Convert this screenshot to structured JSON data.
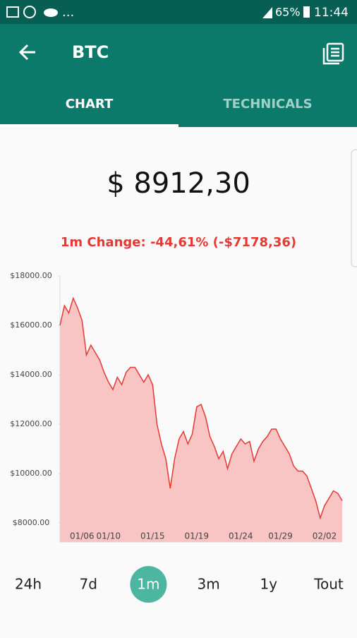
{
  "status_bar": {
    "more": "...",
    "battery": "65%",
    "time": "11:44"
  },
  "app_bar": {
    "title": "BTC"
  },
  "tabs": [
    {
      "label": "CHART",
      "selected": true
    },
    {
      "label": "TECHNICALS",
      "selected": false
    }
  ],
  "price": "$ 8912,30",
  "change": "1m Change: -44,61% (-$7178,36)",
  "chart_data": {
    "type": "area",
    "color": "#e53935",
    "fill": "#f8c4c4",
    "grid": false,
    "categories": [
      null,
      null,
      null,
      null,
      null,
      "01/06",
      null,
      null,
      null,
      null,
      null,
      "01/10",
      null,
      null,
      null,
      null,
      null,
      null,
      null,
      null,
      null,
      "01/15",
      null,
      null,
      null,
      null,
      null,
      null,
      null,
      null,
      null,
      "01/19",
      null,
      null,
      null,
      null,
      null,
      null,
      null,
      null,
      null,
      "01/24",
      null,
      null,
      null,
      null,
      null,
      null,
      null,
      null,
      "01/29",
      null,
      null,
      null,
      null,
      null,
      null,
      null,
      null,
      null,
      "02/02",
      null,
      null,
      null,
      null
    ],
    "values": [
      16000,
      16800,
      16500,
      17100,
      16700,
      16200,
      14800,
      15200,
      14900,
      14600,
      14100,
      13700,
      13400,
      13900,
      13600,
      14100,
      14300,
      14300,
      14000,
      13700,
      14000,
      13600,
      12000,
      11200,
      10600,
      9400,
      10600,
      11400,
      11700,
      11200,
      11600,
      12700,
      12800,
      12300,
      11500,
      11100,
      10600,
      10900,
      10200,
      10800,
      11100,
      11400,
      11200,
      11300,
      10500,
      11000,
      11300,
      11500,
      11800,
      11800,
      11400,
      11100,
      10800,
      10300,
      10100,
      10100,
      9900,
      9400,
      8900,
      8200,
      8700,
      9000,
      9300,
      9200,
      8900
    ],
    "ylim": [
      7230,
      18000
    ],
    "yticks": [
      {
        "value": 8000,
        "label": "$8000.00"
      },
      {
        "value": 10000,
        "label": "$10000.00"
      },
      {
        "value": 12000,
        "label": "$12000.00"
      },
      {
        "value": 14000,
        "label": "$14000.00"
      },
      {
        "value": 16000,
        "label": "$16000.00"
      },
      {
        "value": 18000,
        "label": "$18000.00"
      }
    ]
  },
  "ranges": [
    {
      "label": "24h",
      "selected": false
    },
    {
      "label": "7d",
      "selected": false
    },
    {
      "label": "1m",
      "selected": true
    },
    {
      "label": "3m",
      "selected": false
    },
    {
      "label": "1y",
      "selected": false
    },
    {
      "label": "Tout",
      "selected": false
    }
  ]
}
